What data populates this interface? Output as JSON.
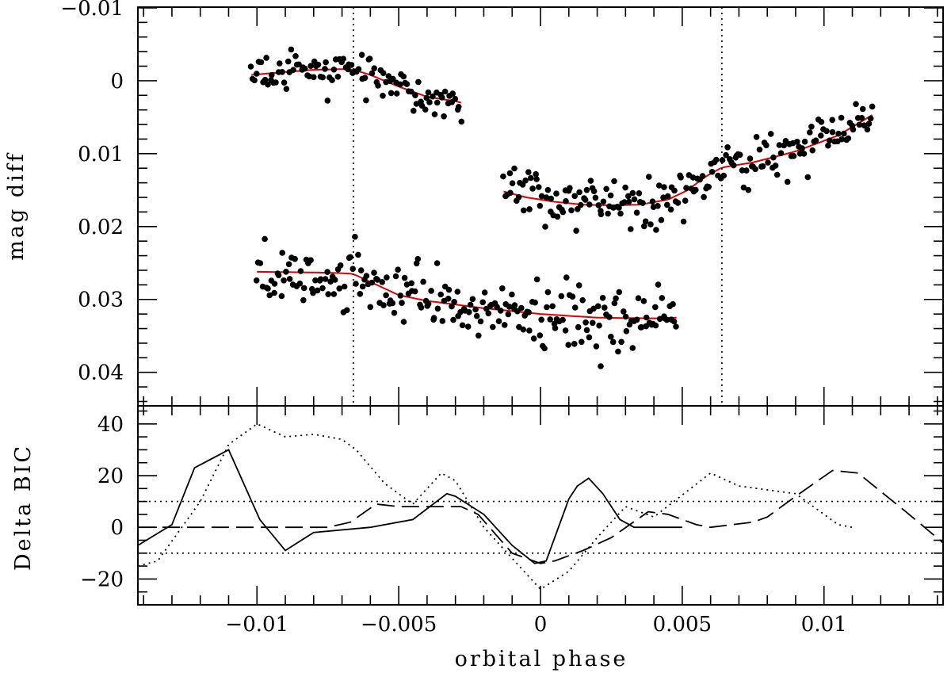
{
  "chart_data": [
    {
      "type": "scatter",
      "panel": "top",
      "ylabel": "mag diff",
      "xlim": [
        -0.0142,
        0.0142
      ],
      "ylim": [
        0.0446,
        -0.0101
      ],
      "yaxis_inverted": true,
      "xticks": [
        -0.01,
        -0.005,
        0,
        0.005,
        0.01
      ],
      "yticks": [
        -0.01,
        0,
        0.01,
        0.02,
        0.03,
        0.04
      ],
      "ytick_labels": [
        "−0.01",
        "0",
        "0.01",
        "0.02",
        "0.03",
        "0.04"
      ],
      "vertical_lines": [
        -0.0066,
        0.0064
      ],
      "vertical_line_style": "dotted",
      "marker_color": "#000000",
      "fit_color": "#e00000",
      "series": [
        {
          "x_range": [
            -0.0102,
            -0.0028
          ],
          "n_points": 110,
          "seed": 11,
          "scatter_sd": 0.0012,
          "fit": {
            "x": [
              -0.0102,
              -0.009,
              -0.008,
              -0.007,
              -0.0066,
              -0.006,
              -0.005,
              -0.004,
              -0.003,
              -0.0028
            ],
            "y": [
              -0.0008,
              -0.0012,
              -0.0015,
              -0.0016,
              -0.0015,
              -0.0008,
              0.0008,
              0.0022,
              0.0028,
              0.003
            ]
          }
        },
        {
          "x_range": [
            -0.0013,
            0.0117
          ],
          "n_points": 200,
          "seed": 23,
          "scatter_sd": 0.0016,
          "fit": {
            "x": [
              -0.0013,
              -0.0005,
              0.0005,
              0.0015,
              0.0025,
              0.0035,
              0.0045,
              0.0052,
              0.0058,
              0.0064,
              0.0075,
              0.009,
              0.0105,
              0.0117
            ],
            "y": [
              0.0152,
              0.016,
              0.0166,
              0.017,
              0.0171,
              0.017,
              0.0163,
              0.015,
              0.0132,
              0.0119,
              0.0112,
              0.0097,
              0.0075,
              0.0047
            ]
          }
        },
        {
          "x_range": [
            -0.01,
            0.0048
          ],
          "n_points": 230,
          "seed": 37,
          "scatter_sd": 0.0022,
          "fit": {
            "x": [
              -0.0102,
              -0.008,
              -0.007,
              -0.0066,
              -0.006,
              -0.005,
              -0.004,
              -0.002,
              0,
              0.002,
              0.004,
              0.0048
            ],
            "y": [
              0.0262,
              0.0263,
              0.0264,
              0.0265,
              0.0276,
              0.0294,
              0.0302,
              0.0312,
              0.032,
              0.0325,
              0.0326,
              0.0325
            ]
          }
        }
      ]
    },
    {
      "type": "line",
      "panel": "bottom",
      "xlabel": "orbital phase",
      "ylabel": "Delta BIC",
      "xlim": [
        -0.0142,
        0.0142
      ],
      "ylim": [
        -30,
        47
      ],
      "xticks": [
        -0.01,
        -0.005,
        0,
        0.005,
        0.01
      ],
      "xtick_labels": [
        "−0.01",
        "−0.005",
        "0",
        "0.005",
        "0.01"
      ],
      "yticks": [
        -20,
        0,
        20,
        40
      ],
      "ytick_labels": [
        "−20",
        "0",
        "20",
        "40"
      ],
      "hlines": [
        {
          "y": 10,
          "style": "dotted"
        },
        {
          "y": -10,
          "style": "dotted"
        }
      ],
      "series": [
        {
          "style": "solid",
          "x": [
            -0.0142,
            -0.013,
            -0.0122,
            -0.011,
            -0.0099,
            -0.009,
            -0.008,
            -0.006,
            -0.0045,
            -0.0033,
            -0.003,
            -0.002,
            -0.001,
            -0.0002,
            0.0002,
            0.001,
            0.0013,
            0.0017,
            0.0022,
            0.0028,
            0.0033,
            0.005
          ],
          "y": [
            -7,
            1,
            23,
            30,
            3,
            -9,
            -2,
            0,
            3,
            13,
            12,
            5,
            -7,
            -14,
            -13,
            11,
            16,
            19,
            13,
            3,
            0,
            0
          ]
        },
        {
          "style": "dashed",
          "x": [
            -0.0142,
            -0.01,
            -0.009,
            -0.0075,
            -0.0067,
            -0.0058,
            -0.005,
            -0.0035,
            -0.0028,
            -0.0022,
            -0.001,
            0,
            0.0005,
            0.0015,
            0.0025,
            0.0038,
            0.0045,
            0.0055,
            0.006,
            0.0075,
            0.008,
            0.009,
            0.0103,
            0.0112,
            0.013,
            0.0142
          ],
          "y": [
            0,
            0,
            0,
            0,
            2,
            9,
            8,
            8,
            8,
            5,
            -10,
            -14,
            -13,
            -9,
            -4,
            6,
            5,
            1,
            0,
            2,
            4,
            12,
            22,
            21,
            5,
            -6
          ]
        },
        {
          "style": "dotted",
          "x": [
            -0.0142,
            -0.0135,
            -0.012,
            -0.011,
            -0.01,
            -0.009,
            -0.008,
            -0.007,
            -0.0065,
            -0.0055,
            -0.0045,
            -0.0035,
            -0.003,
            -0.002,
            -0.001,
            0,
            0.001,
            0.002,
            0.003,
            0.004,
            0.006,
            0.007,
            0.009,
            0.0105,
            0.011
          ],
          "y": [
            -15,
            -13,
            10,
            32,
            40,
            35,
            36,
            34,
            30,
            17,
            9,
            21,
            18,
            0,
            -12,
            -24,
            -17,
            -4,
            8,
            4,
            21,
            16,
            13,
            1,
            0
          ]
        }
      ]
    }
  ]
}
